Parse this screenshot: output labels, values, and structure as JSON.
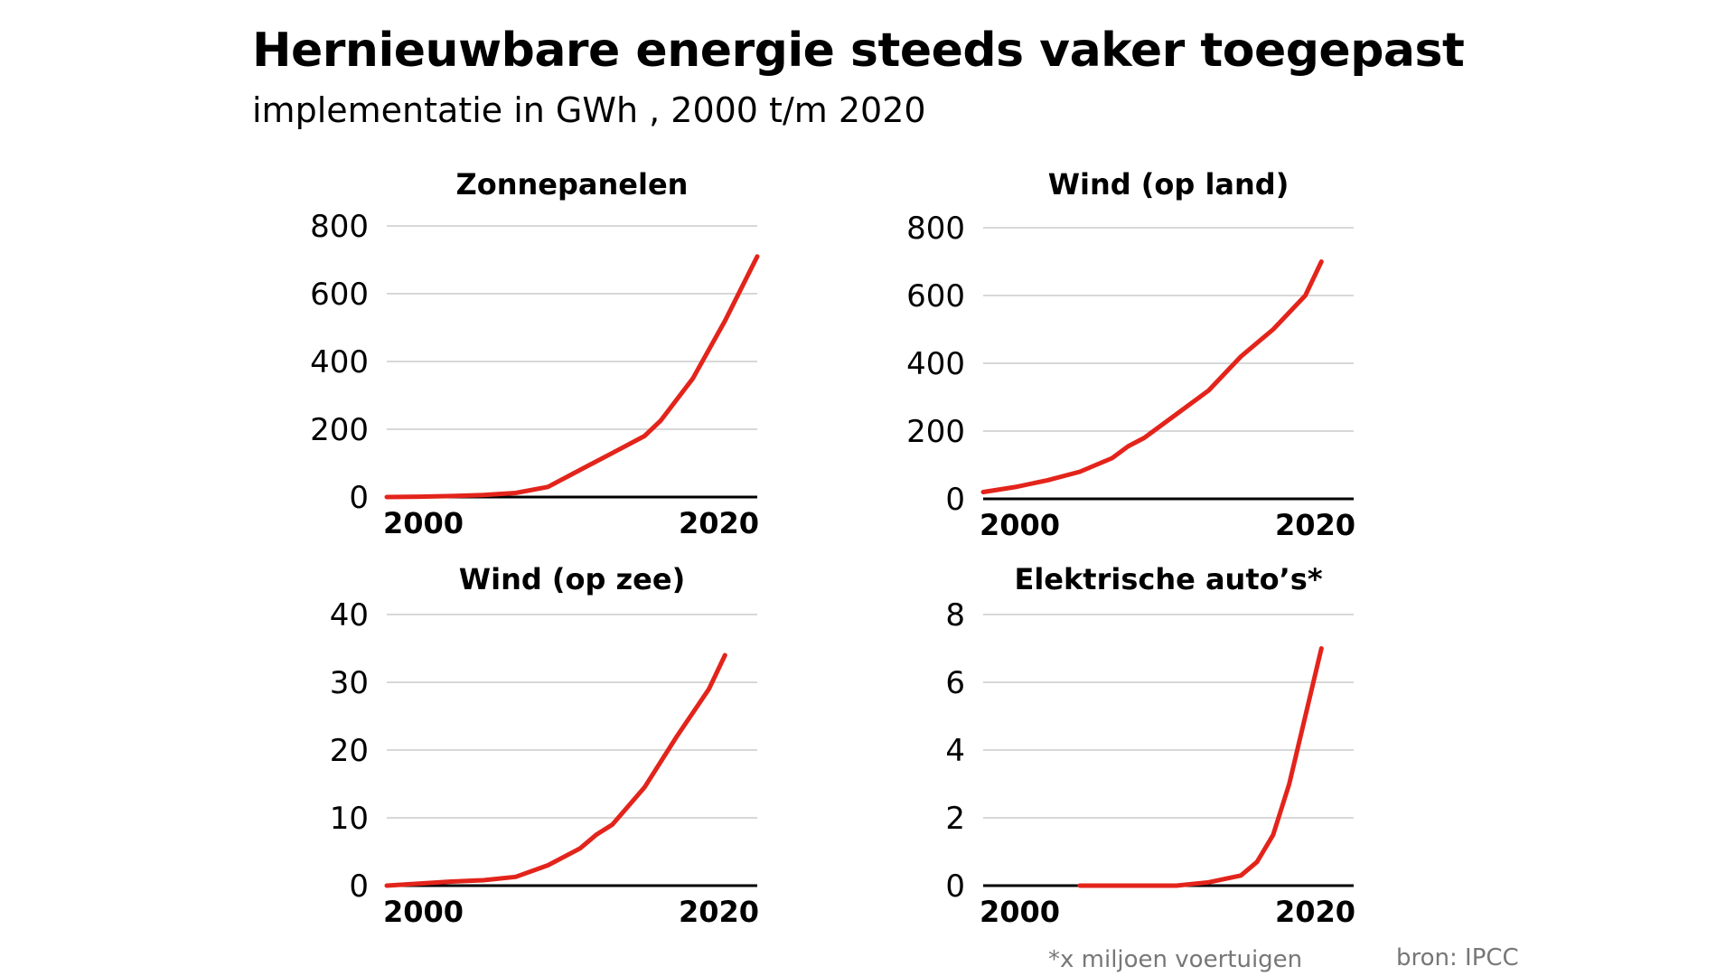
{
  "title": "Hernieuwbare energie steeds vaker toegepast",
  "subtitle": "implementatie in GWh , 2000 t/m 2020",
  "footnote": "*x miljoen voertuigen",
  "source": "bron: IPCC",
  "colors": {
    "line": "#e3241b",
    "grid": "#cccccc",
    "axis": "#000000",
    "note": "#777777"
  },
  "chart_data": [
    {
      "type": "line",
      "title": "Zonnepanelen",
      "x": [
        2000,
        2002,
        2004,
        2006,
        2008,
        2010,
        2012,
        2014,
        2016,
        2017,
        2019,
        2021,
        2023
      ],
      "y": [
        0,
        1,
        3,
        6,
        12,
        30,
        80,
        130,
        180,
        225,
        350,
        520,
        710
      ],
      "ylim": [
        0,
        800
      ],
      "yticks": [
        "0",
        "200",
        "400",
        "600",
        "800"
      ],
      "xticks": [
        "2000",
        "2020"
      ],
      "grid": true
    },
    {
      "type": "line",
      "title": "Wind (op land)",
      "x": [
        2000,
        2002,
        2004,
        2006,
        2008,
        2009,
        2010,
        2012,
        2014,
        2016,
        2018,
        2020,
        2021
      ],
      "y": [
        20,
        35,
        55,
        80,
        120,
        155,
        180,
        250,
        320,
        420,
        500,
        600,
        700
      ],
      "ylim": [
        0,
        800
      ],
      "yticks": [
        "0",
        "200",
        "400",
        "600",
        "800"
      ],
      "xticks": [
        "2000",
        "2020"
      ],
      "grid": true
    },
    {
      "type": "line",
      "title": "Wind (op zee)",
      "x": [
        2000,
        2002,
        2004,
        2006,
        2008,
        2010,
        2012,
        2013,
        2014,
        2016,
        2018,
        2020,
        2021
      ],
      "y": [
        0,
        0.3,
        0.6,
        0.8,
        1.3,
        3,
        5.5,
        7.5,
        9,
        14.5,
        22,
        29,
        34
      ],
      "ylim": [
        0,
        40
      ],
      "yticks": [
        "0",
        "10",
        "20",
        "30",
        "40"
      ],
      "xticks": [
        "2000",
        "2020"
      ],
      "grid": true
    },
    {
      "type": "line",
      "title": "Elektrische auto’s*",
      "x": [
        2006,
        2008,
        2010,
        2012,
        2014,
        2016,
        2017,
        2018,
        2019,
        2020,
        2021
      ],
      "y": [
        0,
        0,
        0,
        0,
        0.1,
        0.3,
        0.7,
        1.5,
        3,
        5,
        7
      ],
      "ylim": [
        0,
        8
      ],
      "yticks": [
        "0",
        "2",
        "4",
        "6",
        "8"
      ],
      "xticks": [
        "2000",
        "2020"
      ],
      "grid": true
    }
  ]
}
